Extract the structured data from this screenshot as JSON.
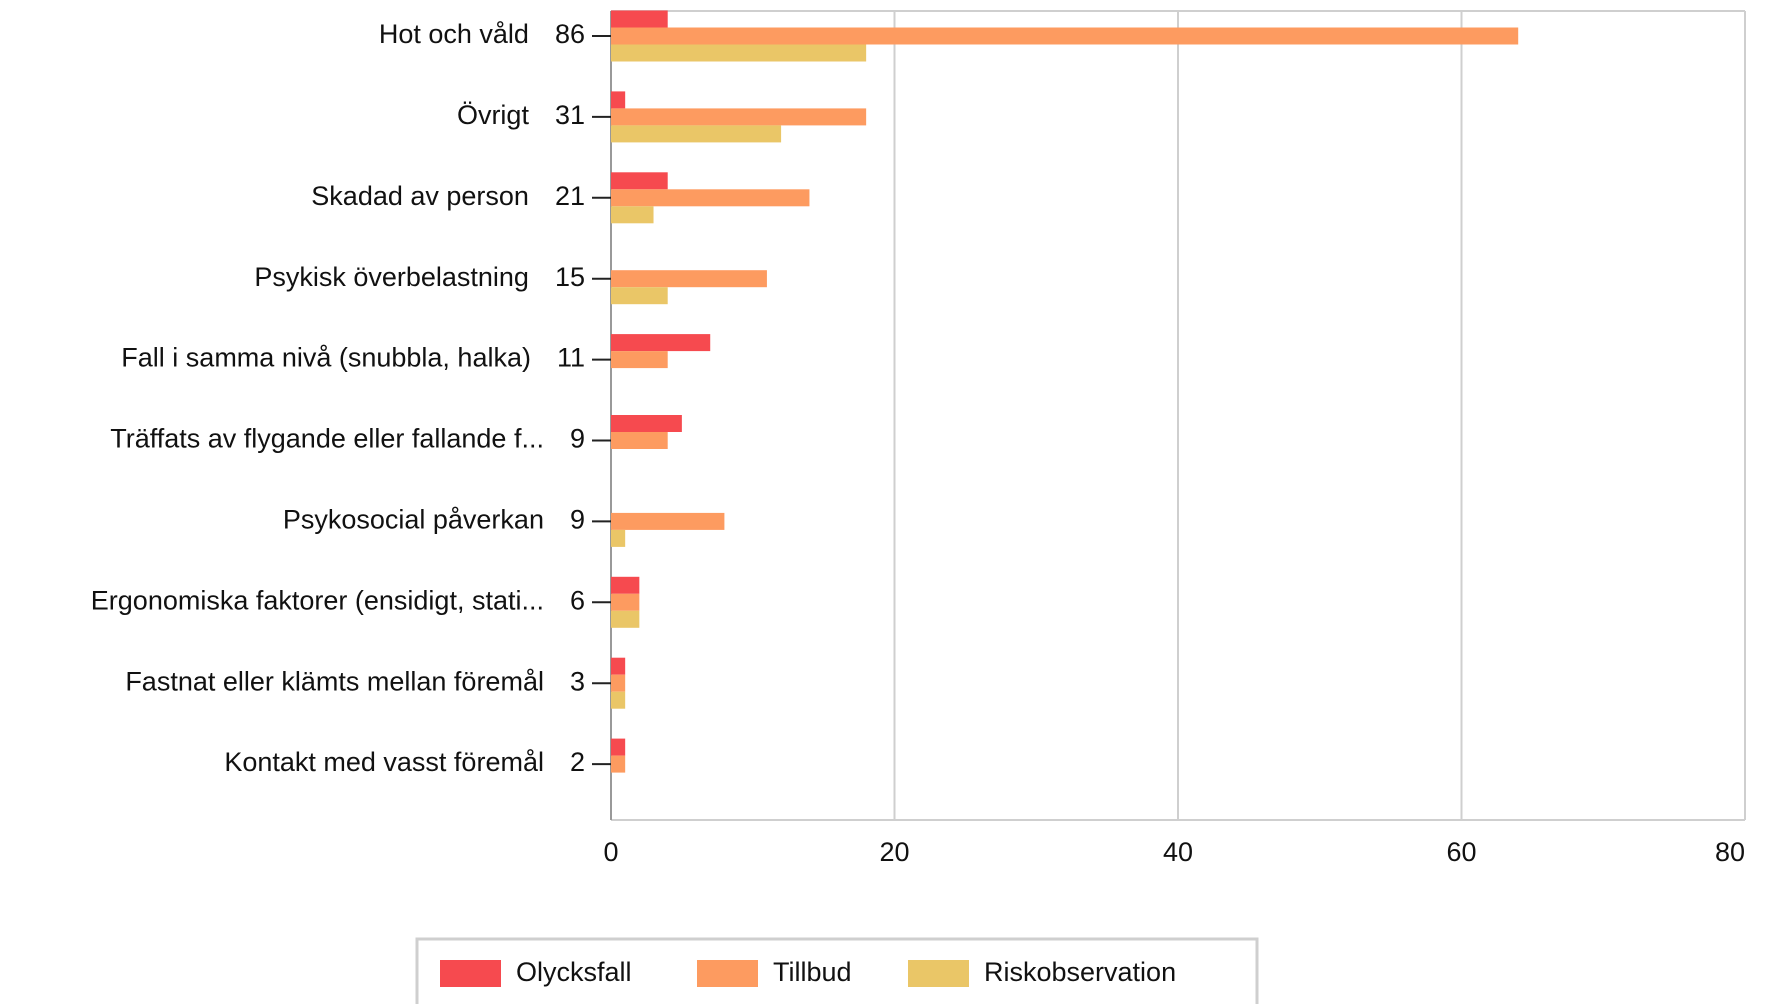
{
  "chart_data": {
    "type": "bar",
    "orientation": "horizontal",
    "categories": [
      "Hot och våld",
      "Övrigt",
      "Skadad av person",
      "Psykisk överbelastning",
      "Fall i samma nivå (snubbla, halka)",
      "Träffats av flygande eller fallande f...",
      "Psykosocial påverkan",
      "Ergonomiska faktorer (ensidigt, stati...",
      "Fastnat eller klämts mellan föremål",
      "Kontakt med vasst föremål"
    ],
    "totals": [
      86,
      31,
      21,
      15,
      11,
      9,
      9,
      6,
      3,
      2
    ],
    "series": [
      {
        "name": "Olycksfall",
        "color": "#f64a4f",
        "values": [
          4,
          1,
          4,
          0,
          7,
          5,
          0,
          2,
          1,
          1
        ]
      },
      {
        "name": "Tillbud",
        "color": "#fd9b60",
        "values": [
          64,
          18,
          14,
          11,
          4,
          4,
          8,
          2,
          1,
          1
        ]
      },
      {
        "name": "Riskobservation",
        "color": "#eac667",
        "values": [
          18,
          12,
          3,
          4,
          0,
          0,
          1,
          2,
          1,
          0
        ]
      }
    ],
    "xlim": [
      0,
      80
    ],
    "xticks": [
      0,
      20,
      40,
      60,
      80
    ],
    "grid": true
  }
}
